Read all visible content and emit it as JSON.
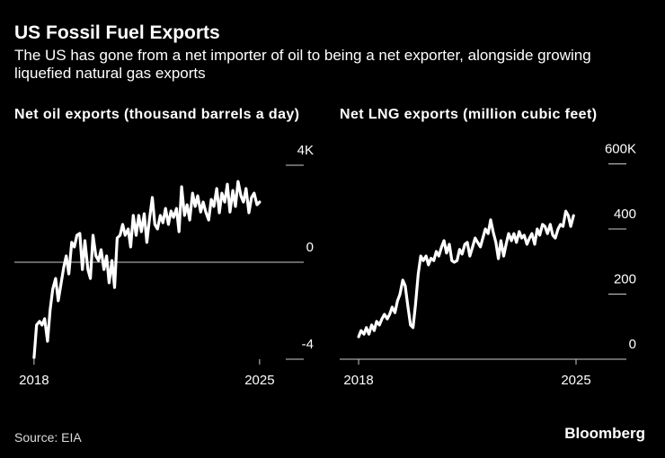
{
  "header": {
    "title": "US Fossil Fuel Exports",
    "subtitle": "The US has gone from a net importer of oil to being a net exporter, alongside growing liquefied natural gas exports"
  },
  "footer": {
    "source": "Source: EIA",
    "logo": "Bloomberg"
  },
  "chart_data": [
    {
      "type": "line",
      "title": "Net oil exports (thousand barrels a day)",
      "color": "#ffffff",
      "xlim": [
        2017.39,
        2026.37
      ],
      "xticks": [
        2018,
        2025
      ],
      "ylim": [
        -4000,
        4000
      ],
      "yticks": [
        {
          "value": -4000,
          "label": "-4"
        },
        0,
        {
          "value": 4000,
          "label": "4K"
        }
      ],
      "x": [
        2018.0,
        2018.08,
        2018.17,
        2018.25,
        2018.33,
        2018.42,
        2018.5,
        2018.58,
        2018.67,
        2018.75,
        2018.83,
        2018.92,
        2019.0,
        2019.08,
        2019.17,
        2019.25,
        2019.33,
        2019.42,
        2019.5,
        2019.58,
        2019.67,
        2019.75,
        2019.83,
        2019.92,
        2020.0,
        2020.08,
        2020.17,
        2020.25,
        2020.33,
        2020.42,
        2020.5,
        2020.58,
        2020.67,
        2020.75,
        2020.83,
        2020.92,
        2021.0,
        2021.08,
        2021.17,
        2021.25,
        2021.33,
        2021.42,
        2021.5,
        2021.58,
        2021.67,
        2021.75,
        2021.83,
        2021.92,
        2022.0,
        2022.08,
        2022.17,
        2022.25,
        2022.33,
        2022.42,
        2022.5,
        2022.58,
        2022.67,
        2022.75,
        2022.83,
        2022.92,
        2023.0,
        2023.08,
        2023.17,
        2023.25,
        2023.33,
        2023.42,
        2023.5,
        2023.58,
        2023.67,
        2023.75,
        2023.83,
        2023.92,
        2024.0,
        2024.08,
        2024.17,
        2024.25,
        2024.33,
        2024.42,
        2024.5,
        2024.58,
        2024.67,
        2024.75,
        2024.83,
        2024.92,
        2025.0
      ],
      "values": [
        -3930,
        -2590,
        -2440,
        -2590,
        -2330,
        -3260,
        -1960,
        -1110,
        -670,
        -1590,
        -960,
        -220,
        260,
        -480,
        820,
        630,
        1110,
        1190,
        -300,
        890,
        -300,
        -670,
        1110,
        260,
        70,
        520,
        -300,
        260,
        -850,
        70,
        -1040,
        1000,
        1110,
        1560,
        1110,
        1370,
        630,
        1930,
        1110,
        1930,
        1260,
        2000,
        820,
        1740,
        2670,
        1560,
        1370,
        1930,
        1630,
        2220,
        1560,
        2110,
        1850,
        2220,
        1260,
        3110,
        1930,
        2370,
        1740,
        2850,
        2300,
        2740,
        2070,
        2480,
        2070,
        1740,
        2590,
        2300,
        3040,
        2040,
        2850,
        2480,
        3220,
        2070,
        2960,
        2300,
        3330,
        2740,
        2480,
        3040,
        2040,
        2670,
        2850,
        2370,
        2480
      ]
    },
    {
      "type": "line",
      "title": "Net LNG exports (million cubic feet)",
      "color": "#ffffff",
      "xlim": [
        2017.39,
        2026.62
      ],
      "xticks": [
        2018,
        2025
      ],
      "ylim": [
        0,
        600000
      ],
      "yticks": [
        0,
        {
          "value": 200000,
          "label": "200"
        },
        {
          "value": 400000,
          "label": "400"
        },
        {
          "value": 600000,
          "label": "600K"
        }
      ],
      "x": [
        2018.0,
        2018.08,
        2018.17,
        2018.25,
        2018.33,
        2018.42,
        2018.5,
        2018.58,
        2018.67,
        2018.75,
        2018.83,
        2018.92,
        2019.0,
        2019.08,
        2019.17,
        2019.25,
        2019.33,
        2019.42,
        2019.5,
        2019.58,
        2019.67,
        2019.75,
        2019.83,
        2019.92,
        2020.0,
        2020.08,
        2020.17,
        2020.25,
        2020.33,
        2020.42,
        2020.5,
        2020.58,
        2020.67,
        2020.75,
        2020.83,
        2020.92,
        2021.0,
        2021.08,
        2021.17,
        2021.25,
        2021.33,
        2021.42,
        2021.5,
        2021.58,
        2021.67,
        2021.75,
        2021.83,
        2021.92,
        2022.0,
        2022.08,
        2022.17,
        2022.25,
        2022.33,
        2022.42,
        2022.5,
        2022.58,
        2022.67,
        2022.75,
        2022.83,
        2022.92,
        2023.0,
        2023.08,
        2023.17,
        2023.25,
        2023.33,
        2023.42,
        2023.5,
        2023.58,
        2023.67,
        2023.75,
        2023.83,
        2023.92,
        2024.0,
        2024.08,
        2024.17,
        2024.25,
        2024.33,
        2024.42,
        2024.5,
        2024.58,
        2024.67,
        2024.75,
        2024.83,
        2024.92
      ],
      "values": [
        69000,
        88000,
        77000,
        97000,
        77000,
        105000,
        88000,
        116000,
        105000,
        124000,
        138000,
        124000,
        138000,
        160000,
        143000,
        179000,
        199000,
        243000,
        226000,
        166000,
        105000,
        97000,
        166000,
        262000,
        317000,
        303000,
        317000,
        290000,
        310000,
        303000,
        331000,
        317000,
        345000,
        364000,
        326000,
        353000,
        303000,
        298000,
        303000,
        337000,
        323000,
        353000,
        359000,
        317000,
        345000,
        372000,
        359000,
        345000,
        372000,
        400000,
        386000,
        428000,
        392000,
        359000,
        309000,
        364000,
        317000,
        353000,
        386000,
        364000,
        386000,
        359000,
        392000,
        372000,
        381000,
        353000,
        372000,
        386000,
        353000,
        400000,
        381000,
        414000,
        408000,
        386000,
        414000,
        381000,
        372000,
        400000,
        414000,
        408000,
        455000,
        441000,
        408000,
        441000
      ]
    }
  ]
}
